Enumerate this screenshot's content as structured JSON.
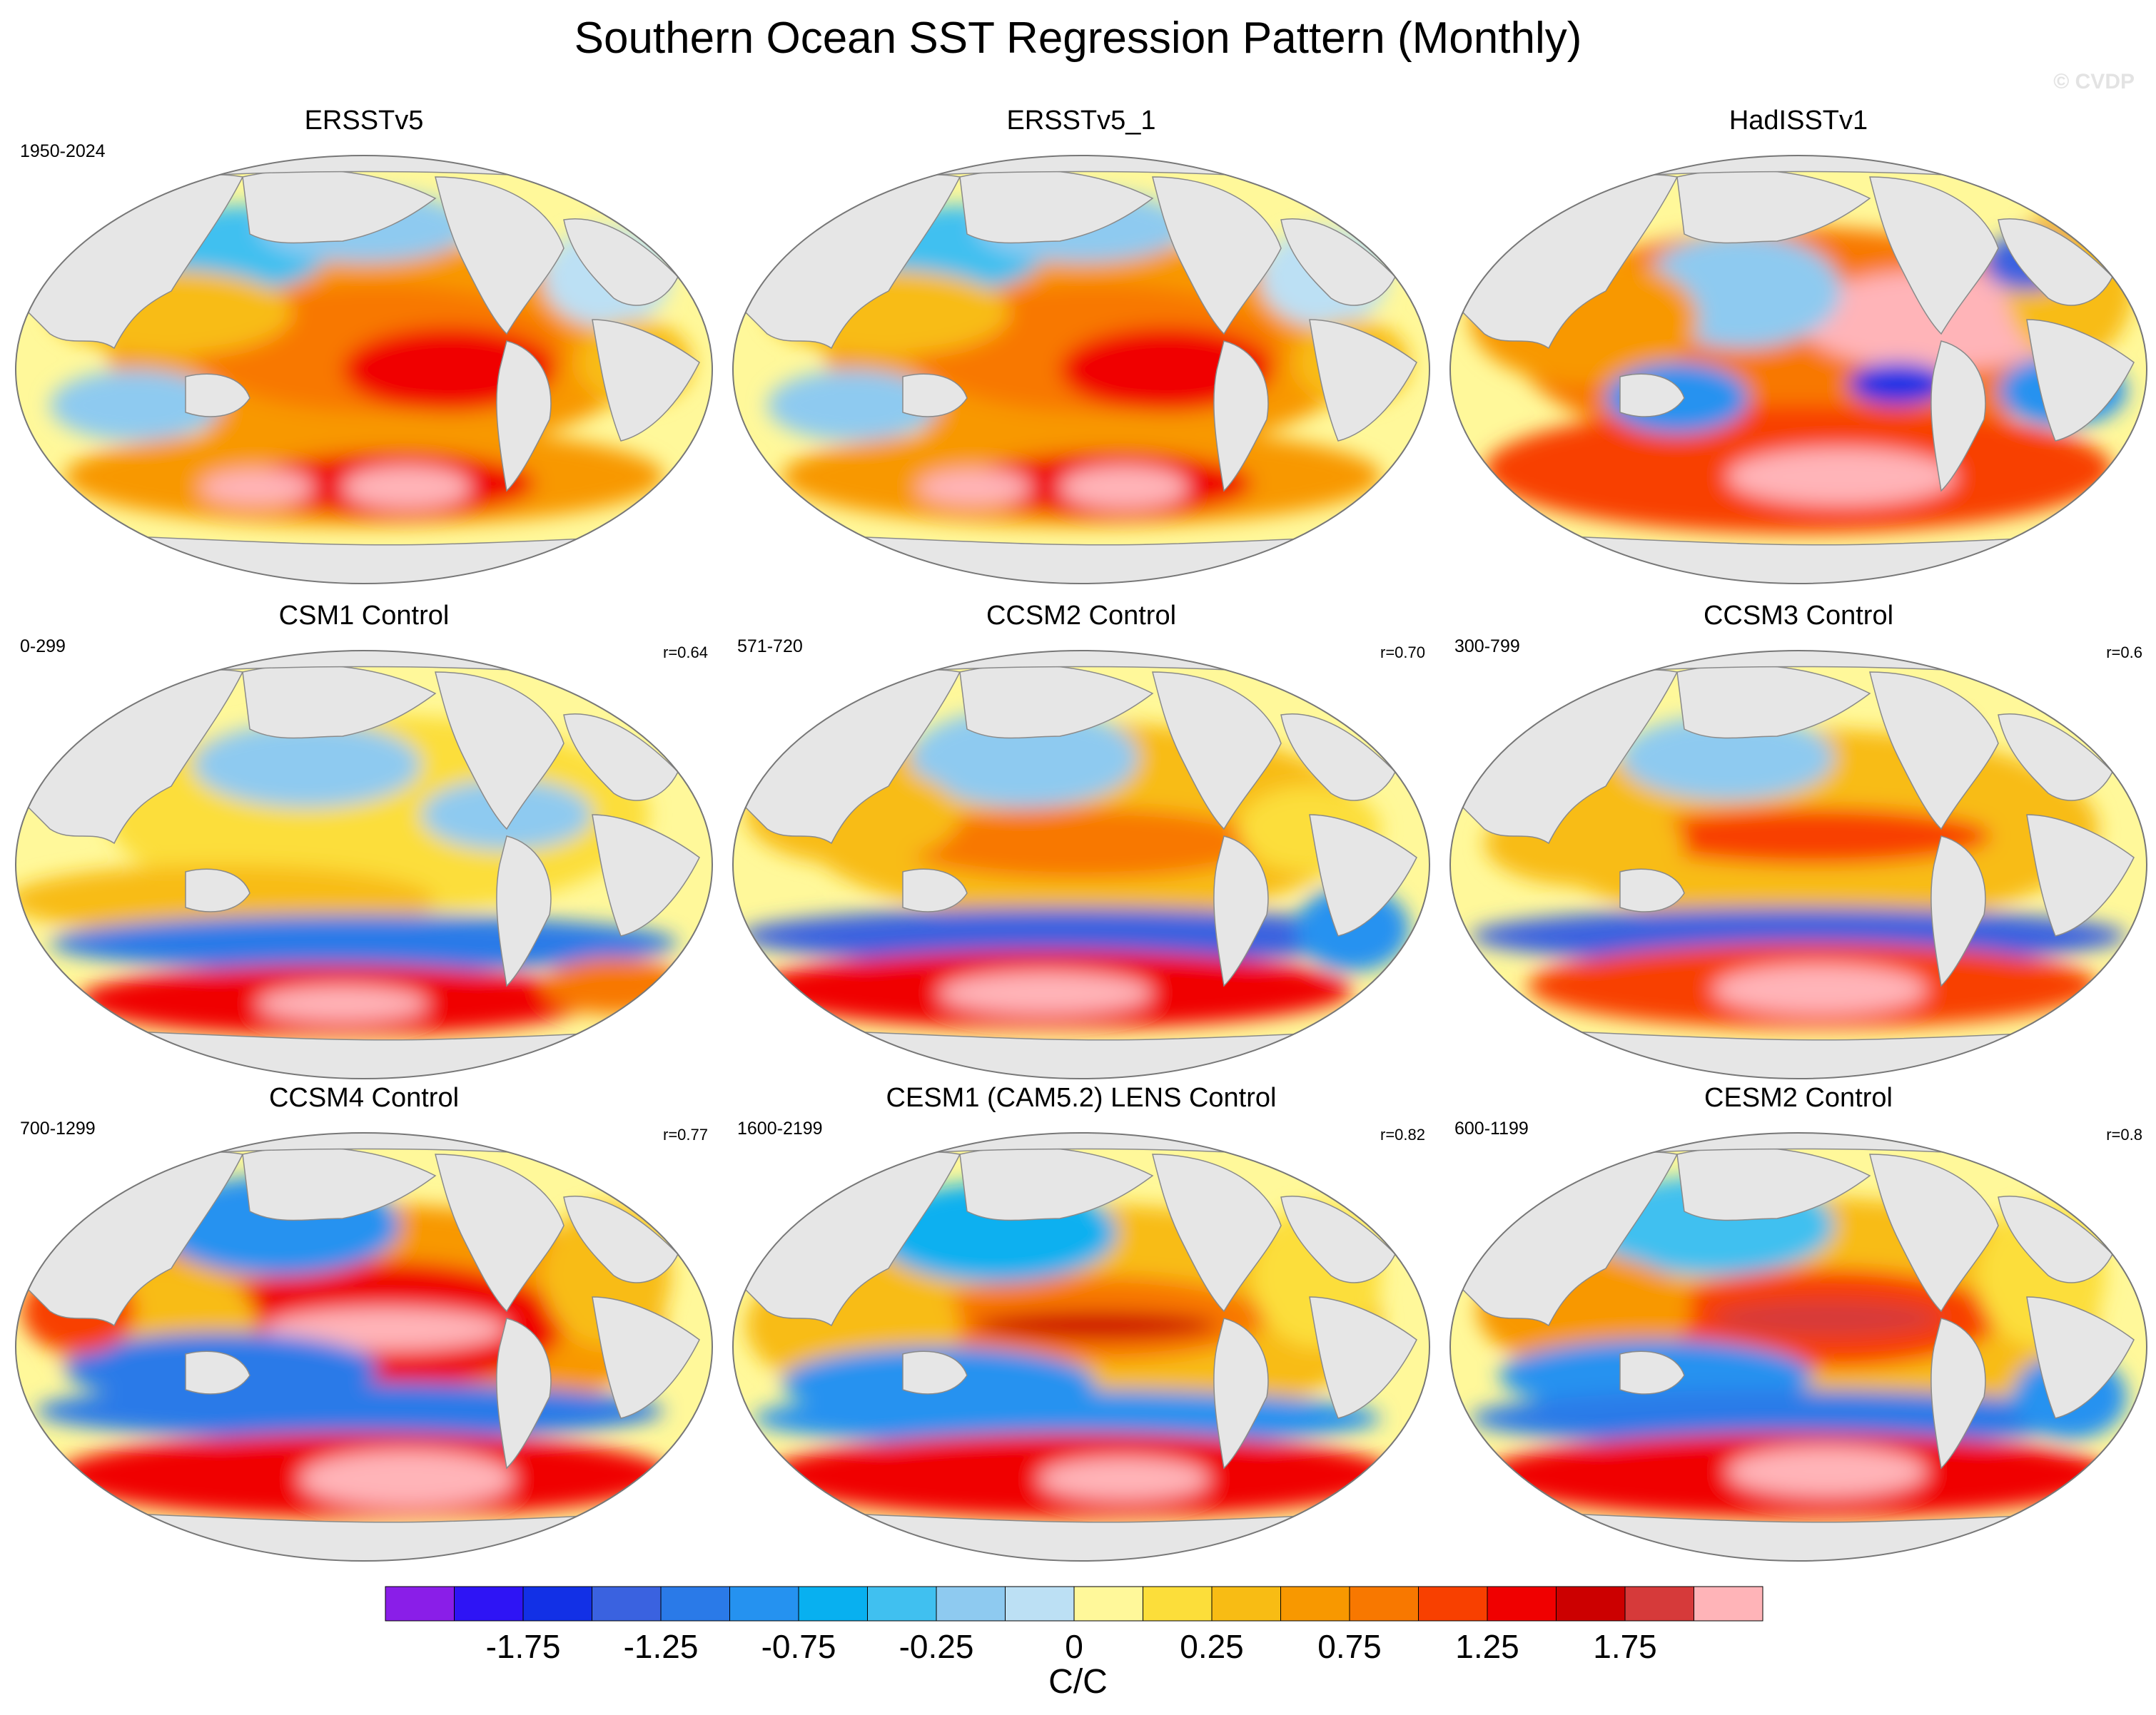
{
  "title": "Southern Ocean SST Regression Pattern (Monthly)",
  "watermark": "© CVDP",
  "panels": [
    {
      "name": "ERSSTv5",
      "period": "1950-2024",
      "r": "",
      "pattern": "obs"
    },
    {
      "name": "ERSSTv5_1",
      "period": "",
      "r": "",
      "pattern": "obs"
    },
    {
      "name": "HadISSTv1",
      "period": "",
      "r": "",
      "pattern": "had"
    },
    {
      "name": "CSM1 Control",
      "period": "0-299",
      "r": "r=0.64",
      "pattern": "csm1"
    },
    {
      "name": "CCSM2 Control",
      "period": "571-720",
      "r": "r=0.70",
      "pattern": "ccsm2"
    },
    {
      "name": "CCSM3 Control",
      "period": "300-799",
      "r": "r=0.6",
      "pattern": "ccsm3"
    },
    {
      "name": "CCSM4 Control",
      "period": "700-1299",
      "r": "r=0.77",
      "pattern": "ccsm4"
    },
    {
      "name": "CESM1 (CAM5.2) LENS Control",
      "period": "1600-2199",
      "r": "r=0.82",
      "pattern": "cesm1"
    },
    {
      "name": "CESM2 Control",
      "period": "600-1199",
      "r": "r=0.8",
      "pattern": "cesm2"
    }
  ],
  "colorbar": {
    "units": "C/C",
    "labels": [
      "-1.75",
      "-1.25",
      "-0.75",
      "-0.25",
      "0",
      "0.25",
      "0.75",
      "1.25",
      "1.75"
    ],
    "colors": [
      "#8a1ee8",
      "#2e14f5",
      "#1230e6",
      "#3a62e0",
      "#2a7ae8",
      "#2592f0",
      "#08b0f0",
      "#40c0f0",
      "#8ecaf0",
      "#bce0f4",
      "#fff89a",
      "#fcde3a",
      "#f8bc14",
      "#f89800",
      "#f87800",
      "#f84000",
      "#f00000",
      "#cc0000",
      "#d63a3a",
      "#ffb4b8"
    ]
  },
  "land_color": "#e6e6e6"
}
